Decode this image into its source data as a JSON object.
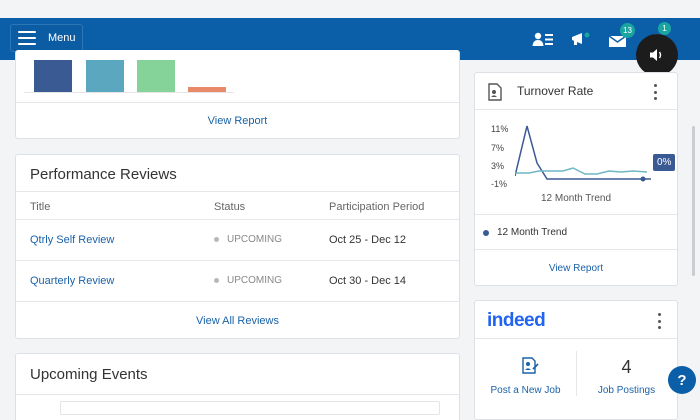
{
  "header": {
    "menu_label": "Menu",
    "icons": [
      "directory-icon",
      "announcement-icon",
      "inbox-icon",
      "notifications-icon"
    ],
    "badges": {
      "inbox": "13",
      "notifications": "1"
    },
    "color": "#0a5fa8"
  },
  "report_card": {
    "view_report": "View Report"
  },
  "performance_reviews": {
    "title": "Performance Reviews",
    "columns": [
      "Title",
      "Status",
      "Participation Period"
    ],
    "rows": [
      {
        "title": "Qtrly Self Review",
        "status": "UPCOMING",
        "period": "Oct 25 - Dec 12"
      },
      {
        "title": "Quarterly Review",
        "status": "UPCOMING",
        "period": "Oct 30 - Dec 14"
      }
    ],
    "view_all": "View All Reviews"
  },
  "upcoming_events": {
    "title": "Upcoming Events"
  },
  "turnover": {
    "title": "Turnover Rate",
    "y_ticks": [
      "11%",
      "7%",
      "3%",
      "-1%"
    ],
    "trend_label": "12 Month Trend",
    "current_value": "0%",
    "legend": "12 Month Trend",
    "view_report": "View Report"
  },
  "indeed": {
    "logo": "indeed",
    "post_job": "Post a New Job",
    "job_count": "4",
    "job_postings": "Job Postings"
  },
  "help_label": "?"
}
